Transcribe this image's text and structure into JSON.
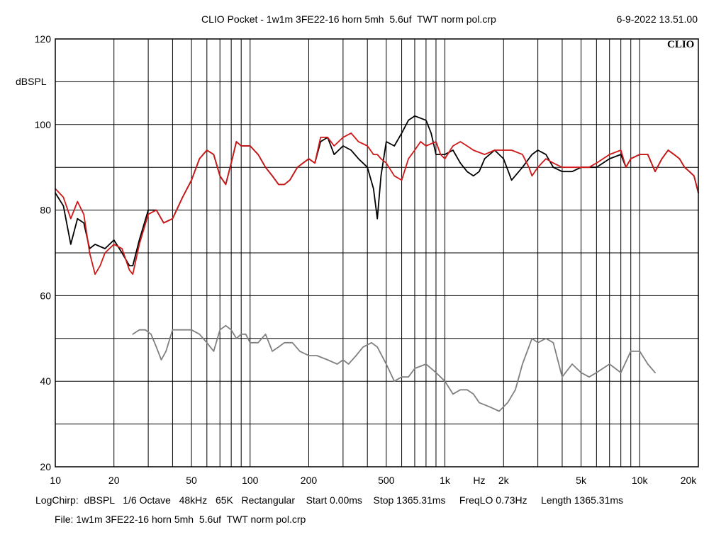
{
  "header": {
    "title": "CLIO Pocket - 1w1m 3FE22-16 horn 5mh  5.6uf  TWT norm pol.crp",
    "timestamp": "6-9-2022 13.51.00",
    "brand": "CLIO"
  },
  "footer": {
    "info": "LogChirp:  dBSPL   1/6 Octave   48kHz   65K   Rectangular    Start 0.00ms    Stop 1365.31ms     FreqLO 0.73Hz     Length 1365.31ms",
    "file": "File: 1w1m 3FE22-16 horn 5mh  5.6uf  TWT norm pol.crp"
  },
  "chart_data": {
    "type": "line",
    "title": "CLIO Pocket - 1w1m 3FE22-16 horn 5mh  5.6uf  TWT norm pol.crp",
    "ylabel": "dBSPL",
    "xlabel": "Hz",
    "x_scale": "log",
    "xlim": [
      10,
      20000
    ],
    "ylim": [
      20,
      120
    ],
    "grid": true,
    "y_tick_labels": [
      "120",
      "100",
      "80",
      "60",
      "40",
      "20"
    ],
    "x_tick_labels": [
      "10",
      "20",
      "50",
      "100",
      "200",
      "500",
      "1k",
      "Hz",
      "2k",
      "5k",
      "10k",
      "20k"
    ],
    "series": [
      {
        "color": "#000000",
        "points": [
          [
            10,
            84
          ],
          [
            11,
            81
          ],
          [
            12,
            72
          ],
          [
            13,
            78
          ],
          [
            14,
            77
          ],
          [
            15,
            71
          ],
          [
            16,
            72
          ],
          [
            18,
            71
          ],
          [
            20,
            73
          ],
          [
            22,
            70
          ],
          [
            24,
            67
          ],
          [
            25,
            67
          ],
          [
            27,
            73
          ],
          [
            30,
            80
          ],
          [
            33,
            80
          ],
          [
            36,
            77
          ],
          [
            40,
            78
          ],
          [
            45,
            83
          ],
          [
            50,
            87
          ],
          [
            55,
            92
          ],
          [
            60,
            94
          ],
          [
            65,
            93
          ],
          [
            70,
            88
          ],
          [
            75,
            86
          ],
          [
            80,
            91
          ],
          [
            85,
            96
          ],
          [
            90,
            95
          ],
          [
            100,
            95
          ],
          [
            110,
            93
          ],
          [
            120,
            90
          ],
          [
            130,
            88
          ],
          [
            140,
            86
          ],
          [
            150,
            86
          ],
          [
            160,
            87
          ],
          [
            175,
            90
          ],
          [
            200,
            92
          ],
          [
            215,
            91
          ],
          [
            230,
            96
          ],
          [
            250,
            97
          ],
          [
            270,
            93
          ],
          [
            300,
            95
          ],
          [
            330,
            94
          ],
          [
            360,
            92
          ],
          [
            400,
            90
          ],
          [
            430,
            85
          ],
          [
            450,
            78
          ],
          [
            470,
            88
          ],
          [
            500,
            96
          ],
          [
            550,
            95
          ],
          [
            600,
            98
          ],
          [
            650,
            101
          ],
          [
            700,
            102
          ],
          [
            800,
            101
          ],
          [
            850,
            98
          ],
          [
            900,
            93
          ],
          [
            1000,
            93
          ],
          [
            1100,
            94
          ],
          [
            1200,
            91
          ],
          [
            1300,
            89
          ],
          [
            1400,
            88
          ],
          [
            1500,
            89
          ],
          [
            1600,
            92
          ],
          [
            1800,
            94
          ],
          [
            2000,
            92
          ],
          [
            2200,
            87
          ],
          [
            2500,
            90
          ],
          [
            2800,
            93
          ],
          [
            3000,
            94
          ],
          [
            3300,
            93
          ],
          [
            3600,
            90
          ],
          [
            4000,
            89
          ],
          [
            4500,
            89
          ],
          [
            5000,
            90
          ],
          [
            5500,
            90
          ],
          [
            6000,
            90
          ],
          [
            7000,
            92
          ],
          [
            8000,
            93
          ],
          [
            8500,
            90
          ],
          [
            9000,
            92
          ],
          [
            10000,
            93
          ],
          [
            11000,
            93
          ],
          [
            12000,
            89
          ],
          [
            13000,
            92
          ],
          [
            14000,
            94
          ],
          [
            15000,
            93
          ],
          [
            16000,
            92
          ],
          [
            17000,
            90
          ],
          [
            18000,
            89
          ],
          [
            19000,
            88
          ],
          [
            20000,
            84
          ]
        ]
      },
      {
        "color": "#d01818",
        "points": [
          [
            10,
            85
          ],
          [
            11,
            83
          ],
          [
            12,
            78
          ],
          [
            13,
            82
          ],
          [
            14,
            79
          ],
          [
            15,
            70
          ],
          [
            16,
            65
          ],
          [
            17,
            67
          ],
          [
            18,
            70
          ],
          [
            20,
            72
          ],
          [
            22,
            71
          ],
          [
            24,
            66
          ],
          [
            25,
            65
          ],
          [
            27,
            72
          ],
          [
            30,
            79
          ],
          [
            33,
            80
          ],
          [
            36,
            77
          ],
          [
            40,
            78
          ],
          [
            45,
            83
          ],
          [
            50,
            87
          ],
          [
            55,
            92
          ],
          [
            60,
            94
          ],
          [
            65,
            93
          ],
          [
            70,
            88
          ],
          [
            75,
            86
          ],
          [
            80,
            91
          ],
          [
            85,
            96
          ],
          [
            90,
            95
          ],
          [
            100,
            95
          ],
          [
            110,
            93
          ],
          [
            120,
            90
          ],
          [
            130,
            88
          ],
          [
            140,
            86
          ],
          [
            150,
            86
          ],
          [
            160,
            87
          ],
          [
            175,
            90
          ],
          [
            200,
            92
          ],
          [
            215,
            91
          ],
          [
            230,
            97
          ],
          [
            250,
            97
          ],
          [
            270,
            95
          ],
          [
            300,
            97
          ],
          [
            330,
            98
          ],
          [
            360,
            96
          ],
          [
            400,
            95
          ],
          [
            430,
            93
          ],
          [
            450,
            93
          ],
          [
            470,
            92
          ],
          [
            500,
            91
          ],
          [
            550,
            88
          ],
          [
            600,
            87
          ],
          [
            650,
            92
          ],
          [
            700,
            94
          ],
          [
            750,
            96
          ],
          [
            800,
            95
          ],
          [
            900,
            96
          ],
          [
            950,
            93
          ],
          [
            1000,
            92
          ],
          [
            1100,
            95
          ],
          [
            1200,
            96
          ],
          [
            1300,
            95
          ],
          [
            1400,
            94
          ],
          [
            1600,
            93
          ],
          [
            1800,
            94
          ],
          [
            2000,
            94
          ],
          [
            2200,
            94
          ],
          [
            2500,
            93
          ],
          [
            2700,
            90
          ],
          [
            2800,
            88
          ],
          [
            3000,
            90
          ],
          [
            3300,
            92
          ],
          [
            3600,
            91
          ],
          [
            4000,
            90
          ],
          [
            4500,
            90
          ],
          [
            5000,
            90
          ],
          [
            5500,
            90
          ],
          [
            6000,
            91
          ],
          [
            7000,
            93
          ],
          [
            8000,
            94
          ],
          [
            8500,
            90
          ],
          [
            9000,
            92
          ],
          [
            10000,
            93
          ],
          [
            11000,
            93
          ],
          [
            12000,
            89
          ],
          [
            13000,
            92
          ],
          [
            14000,
            94
          ],
          [
            15000,
            93
          ],
          [
            16000,
            92
          ],
          [
            17000,
            90
          ],
          [
            18000,
            89
          ],
          [
            19000,
            88
          ],
          [
            20000,
            84
          ]
        ]
      },
      {
        "color": "#808080",
        "points": [
          [
            25,
            51
          ],
          [
            27,
            52
          ],
          [
            29,
            52
          ],
          [
            31,
            51
          ],
          [
            33,
            48
          ],
          [
            35,
            45
          ],
          [
            37,
            47
          ],
          [
            40,
            52
          ],
          [
            45,
            52
          ],
          [
            50,
            52
          ],
          [
            55,
            51
          ],
          [
            60,
            49
          ],
          [
            65,
            47
          ],
          [
            70,
            52
          ],
          [
            75,
            53
          ],
          [
            80,
            52
          ],
          [
            85,
            50
          ],
          [
            90,
            51
          ],
          [
            95,
            51
          ],
          [
            100,
            49
          ],
          [
            110,
            49
          ],
          [
            120,
            51
          ],
          [
            130,
            47
          ],
          [
            140,
            48
          ],
          [
            150,
            49
          ],
          [
            165,
            49
          ],
          [
            180,
            47
          ],
          [
            200,
            46
          ],
          [
            220,
            46
          ],
          [
            250,
            45
          ],
          [
            280,
            44
          ],
          [
            300,
            45
          ],
          [
            320,
            44
          ],
          [
            350,
            46
          ],
          [
            380,
            48
          ],
          [
            420,
            49
          ],
          [
            450,
            48
          ],
          [
            500,
            44
          ],
          [
            550,
            40
          ],
          [
            600,
            41
          ],
          [
            650,
            41
          ],
          [
            700,
            43
          ],
          [
            800,
            44
          ],
          [
            900,
            42
          ],
          [
            1000,
            40
          ],
          [
            1100,
            37
          ],
          [
            1200,
            38
          ],
          [
            1300,
            38
          ],
          [
            1400,
            37
          ],
          [
            1500,
            35
          ],
          [
            1700,
            34
          ],
          [
            1900,
            33
          ],
          [
            2100,
            35
          ],
          [
            2300,
            38
          ],
          [
            2500,
            44
          ],
          [
            2800,
            50
          ],
          [
            3000,
            49
          ],
          [
            3300,
            50
          ],
          [
            3600,
            49
          ],
          [
            4000,
            41
          ],
          [
            4500,
            44
          ],
          [
            5000,
            42
          ],
          [
            5500,
            41
          ],
          [
            6000,
            42
          ],
          [
            7000,
            44
          ],
          [
            8000,
            42
          ],
          [
            9000,
            47
          ],
          [
            10000,
            47
          ],
          [
            11000,
            44
          ],
          [
            12000,
            42
          ]
        ]
      }
    ]
  }
}
